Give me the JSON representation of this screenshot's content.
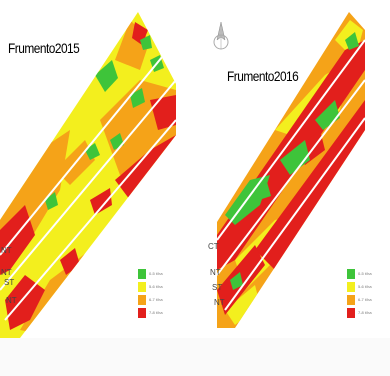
{
  "colors": {
    "green": "#3ec43a",
    "yellow": "#f3ef1e",
    "orange": "#f5a318",
    "red": "#e21f1c",
    "background": "#ffffff"
  },
  "maps": [
    {
      "id": "map-2015",
      "title": "Frumento2015",
      "row_labels": [
        "NT",
        "NT",
        "ST",
        "NT"
      ],
      "legend": [
        {
          "label": "0-5 t/ha",
          "color": "#3ec43a"
        },
        {
          "label": "5-6 t/ha",
          "color": "#f3ef1e"
        },
        {
          "label": "6-7 t/ha",
          "color": "#f5a318"
        },
        {
          "label": "7-8 t/ha",
          "color": "#e21f1c"
        }
      ]
    },
    {
      "id": "map-2016",
      "title": "Frumento2016",
      "row_labels": [
        "CT",
        "NT",
        "ST",
        "NT"
      ],
      "legend": [
        {
          "label": "0-5 t/ha",
          "color": "#3ec43a"
        },
        {
          "label": "5-6 t/ha",
          "color": "#f3ef1e"
        },
        {
          "label": "6-7 t/ha",
          "color": "#f5a318"
        },
        {
          "label": "7-8 t/ha",
          "color": "#e21f1c"
        }
      ]
    }
  ]
}
